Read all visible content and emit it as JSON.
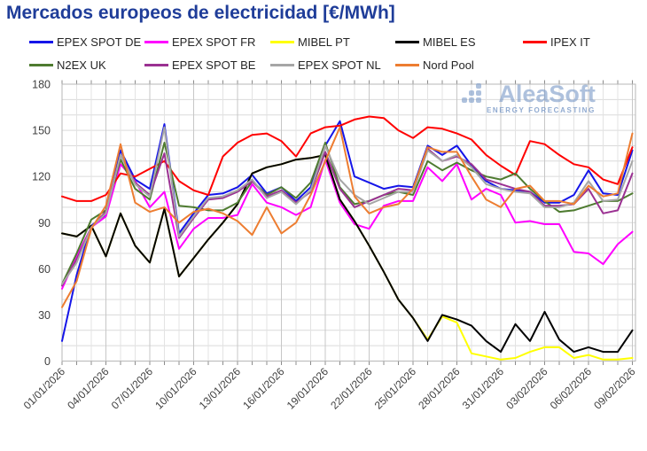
{
  "title": "Mercados europeos de electricidad [€/MWh]",
  "watermark": {
    "name": "AleaSoft",
    "tagline": "ENERGY FORECASTING"
  },
  "chart_data": {
    "type": "line",
    "title": "Mercados europeos de electricidad [€/MWh]",
    "xlabel": "",
    "ylabel": "€/MWh",
    "ylim": [
      0,
      180
    ],
    "y_tick_step": 30,
    "y_minor_grid_step": 10,
    "grid": true,
    "legend_position": "top",
    "x_tick_every_days": 3,
    "x_tick_labels": [
      "01/01/2026",
      "04/01/2026",
      "07/01/2026",
      "10/01/2026",
      "13/01/2026",
      "16/01/2026",
      "19/01/2026",
      "22/01/2026",
      "25/01/2026",
      "28/01/2026",
      "31/01/2026",
      "03/02/2026",
      "06/02/2026",
      "09/02/2026"
    ],
    "categories": [
      "01/01/2026",
      "02/01/2026",
      "03/01/2026",
      "04/01/2026",
      "05/01/2026",
      "06/01/2026",
      "07/01/2026",
      "08/01/2026",
      "09/01/2026",
      "10/01/2026",
      "11/01/2026",
      "12/01/2026",
      "13/01/2026",
      "14/01/2026",
      "15/01/2026",
      "16/01/2026",
      "17/01/2026",
      "18/01/2026",
      "19/01/2026",
      "20/01/2026",
      "21/01/2026",
      "22/01/2026",
      "23/01/2026",
      "24/01/2026",
      "25/01/2026",
      "26/01/2026",
      "27/01/2026",
      "28/01/2026",
      "29/01/2026",
      "30/01/2026",
      "31/01/2026",
      "01/02/2026",
      "02/02/2026",
      "03/02/2026",
      "04/02/2026",
      "05/02/2026",
      "06/02/2026",
      "07/02/2026",
      "08/02/2026",
      "09/02/2026"
    ],
    "series": [
      {
        "name": "EPEX SPOT DE",
        "color": "#1515e8",
        "values": [
          13,
          56,
          88,
          95,
          137,
          118,
          112,
          154,
          83,
          96,
          108,
          109,
          113,
          121,
          109,
          113,
          104,
          113,
          140,
          156,
          120,
          116,
          112,
          114,
          113,
          140,
          134,
          140,
          127,
          117,
          112,
          111,
          110,
          103,
          103,
          108,
          124,
          109,
          108,
          137
        ]
      },
      {
        "name": "EPEX SPOT FR",
        "color": "#ff00ff",
        "values": [
          47,
          68,
          87,
          94,
          128,
          117,
          100,
          110,
          73,
          86,
          93,
          93,
          95,
          115,
          103,
          100,
          95,
          100,
          131,
          103,
          89,
          86,
          101,
          104,
          104,
          126,
          117,
          128,
          105,
          112,
          108,
          90,
          91,
          89,
          89,
          71,
          70,
          63,
          76,
          84
        ]
      },
      {
        "name": "MIBEL PT",
        "color": "#ffff00",
        "values": [
          83,
          81,
          88,
          68,
          96,
          75,
          64,
          99,
          55,
          67,
          79,
          90,
          102,
          122,
          126,
          128,
          131,
          132,
          134,
          105,
          91,
          75,
          58,
          40,
          28,
          14,
          29,
          25,
          5,
          3,
          1,
          2,
          6,
          9,
          9,
          2,
          4,
          1,
          1,
          2
        ]
      },
      {
        "name": "MIBEL ES",
        "color": "#000000",
        "values": [
          83,
          81,
          88,
          68,
          96,
          75,
          64,
          99,
          55,
          67,
          79,
          90,
          102,
          122,
          126,
          128,
          131,
          132,
          134,
          105,
          91,
          75,
          58,
          40,
          28,
          13,
          30,
          27,
          23,
          13,
          6,
          24,
          13,
          32,
          14,
          6,
          9,
          6,
          6,
          20
        ]
      },
      {
        "name": "IPEX IT",
        "color": "#ff0000",
        "values": [
          107,
          104,
          104,
          108,
          122,
          120,
          125,
          130,
          117,
          111,
          108,
          133,
          142,
          147,
          148,
          143,
          133,
          148,
          152,
          153,
          157,
          159,
          158,
          150,
          145,
          152,
          151,
          148,
          144,
          134,
          127,
          121,
          143,
          141,
          134,
          128,
          126,
          118,
          115,
          139
        ]
      },
      {
        "name": "N2EX UK",
        "color": "#4e7b30",
        "values": [
          50,
          70,
          92,
          98,
          131,
          112,
          105,
          142,
          101,
          100,
          98,
          98,
          103,
          117,
          108,
          113,
          106,
          116,
          142,
          113,
          102,
          104,
          108,
          110,
          108,
          130,
          124,
          129,
          124,
          120,
          118,
          122,
          112,
          104,
          97,
          98,
          101,
          104,
          104,
          109
        ]
      },
      {
        "name": "EPEX SPOT BE",
        "color": "#9b3192",
        "values": [
          49,
          66,
          87,
          97,
          134,
          116,
          108,
          135,
          80,
          93,
          105,
          106,
          110,
          117,
          107,
          111,
          103,
          110,
          136,
          112,
          100,
          104,
          108,
          112,
          111,
          138,
          130,
          133,
          128,
          118,
          115,
          112,
          110,
          101,
          101,
          102,
          112,
          96,
          98,
          122
        ]
      },
      {
        "name": "EPEX SPOT NL",
        "color": "#a6a6a6",
        "values": [
          50,
          64,
          87,
          96,
          134,
          115,
          107,
          152,
          81,
          94,
          106,
          107,
          111,
          118,
          106,
          110,
          102,
          111,
          140,
          118,
          108,
          102,
          106,
          110,
          110,
          137,
          130,
          134,
          126,
          115,
          112,
          110,
          109,
          100,
          100,
          103,
          117,
          104,
          105,
          130
        ]
      },
      {
        "name": "Nord Pool",
        "color": "#ed7d31",
        "values": [
          35,
          52,
          86,
          101,
          141,
          103,
          97,
          100,
          90,
          97,
          99,
          96,
          91,
          82,
          100,
          83,
          90,
          108,
          130,
          152,
          107,
          96,
          100,
          102,
          112,
          139,
          136,
          136,
          120,
          105,
          100,
          112,
          114,
          104,
          104,
          102,
          114,
          107,
          109,
          148
        ]
      }
    ]
  }
}
